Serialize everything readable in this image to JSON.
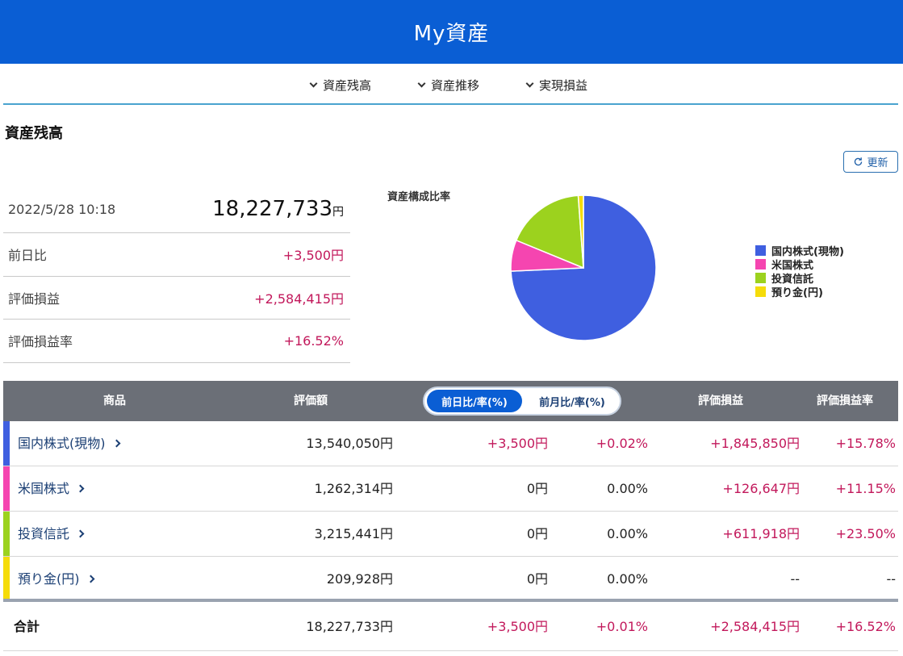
{
  "header": {
    "title": "My資産"
  },
  "nav": {
    "items": [
      "資産残高",
      "資産推移",
      "実現損益"
    ]
  },
  "section": {
    "title": "資産残高"
  },
  "refresh": {
    "label": "更新",
    "icon": "refresh-icon"
  },
  "summary": {
    "datetime": "2022/5/28 10:18",
    "total": "18,227,733",
    "total_unit": "円",
    "rows": [
      {
        "label": "前日比",
        "value": "+3,500円"
      },
      {
        "label": "評価損益",
        "value": "+2,584,415円"
      },
      {
        "label": "評価損益率",
        "value": "+16.52%"
      }
    ]
  },
  "chart_data": {
    "type": "pie",
    "title": "資産構成比率",
    "legend_position": "right",
    "categories": [
      "国内株式(現物)",
      "米国株式",
      "投資信託",
      "預り金(円)"
    ],
    "values": [
      13540050,
      1262314,
      3215441,
      209928
    ],
    "colors": [
      "#3f5fe0",
      "#f545b0",
      "#9cd21e",
      "#f5dc0a"
    ]
  },
  "table": {
    "headers": {
      "product": "商品",
      "amount": "評価額",
      "pl": "評価損益",
      "pl_rate": "評価損益率"
    },
    "toggle": {
      "active": "前日比/率(%)",
      "inactive": "前月比/率(%)"
    },
    "rows": [
      {
        "name": "国内株式(現物)",
        "color": "#3f5fe0",
        "amount": "13,540,050円",
        "day_diff": "+3,500円",
        "day_rate": "+0.02%",
        "pl": "+1,845,850円",
        "pl_rate": "+15.78%"
      },
      {
        "name": "米国株式",
        "color": "#f545b0",
        "amount": "1,262,314円",
        "day_diff": "0円",
        "day_rate": "0.00%",
        "pl": "+126,647円",
        "pl_rate": "+11.15%"
      },
      {
        "name": "投資信託",
        "color": "#9cd21e",
        "amount": "3,215,441円",
        "day_diff": "0円",
        "day_rate": "0.00%",
        "pl": "+611,918円",
        "pl_rate": "+23.50%"
      },
      {
        "name": "預り金(円)",
        "color": "#f5dc0a",
        "amount": "209,928円",
        "day_diff": "0円",
        "day_rate": "0.00%",
        "pl": "--",
        "pl_rate": "--"
      }
    ],
    "total": {
      "label": "合計",
      "amount": "18,227,733円",
      "day_diff": "+3,500円",
      "day_rate": "+0.01%",
      "pl": "+2,584,415円",
      "pl_rate": "+16.52%"
    }
  }
}
